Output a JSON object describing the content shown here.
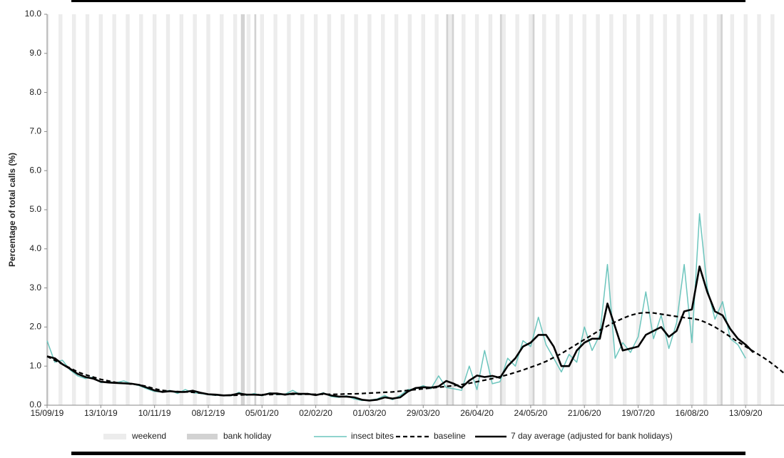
{
  "chart_data": {
    "type": "line",
    "ylabel": "Percentage of total calls (%)",
    "xlim": [
      0,
      384
    ],
    "xticks": [
      {
        "value": 0,
        "label": "15/09/19"
      },
      {
        "value": 28,
        "label": "13/10/19"
      },
      {
        "value": 56,
        "label": "10/11/19"
      },
      {
        "value": 84,
        "label": "08/12/19"
      },
      {
        "value": 112,
        "label": "05/01/20"
      },
      {
        "value": 140,
        "label": "02/02/20"
      },
      {
        "value": 168,
        "label": "01/03/20"
      },
      {
        "value": 196,
        "label": "29/03/20"
      },
      {
        "value": 224,
        "label": "26/04/20"
      },
      {
        "value": 252,
        "label": "24/05/20"
      },
      {
        "value": 280,
        "label": "21/06/20"
      },
      {
        "value": 308,
        "label": "19/07/20"
      },
      {
        "value": 336,
        "label": "16/08/20"
      },
      {
        "value": 364,
        "label": "13/09/20"
      }
    ],
    "ylim": [
      0,
      10
    ],
    "yticks": [
      {
        "value": 0,
        "label": "0.0"
      },
      {
        "value": 1,
        "label": "1.0"
      },
      {
        "value": 2,
        "label": "2.0"
      },
      {
        "value": 3,
        "label": "3.0"
      },
      {
        "value": 4,
        "label": "4.0"
      },
      {
        "value": 5,
        "label": "5.0"
      },
      {
        "value": 6,
        "label": "6.0"
      },
      {
        "value": 7,
        "label": "7.0"
      },
      {
        "value": 8,
        "label": "8.0"
      },
      {
        "value": 9,
        "label": "9.0"
      },
      {
        "value": 10,
        "label": "10.0"
      }
    ],
    "bands": [
      {
        "name": "weekend",
        "color": "#ececec",
        "x": [
          0,
          6,
          7,
          13,
          14,
          20,
          21,
          27,
          28,
          34,
          35,
          41,
          42,
          48,
          49,
          55,
          56,
          62,
          63,
          69,
          70,
          76,
          77,
          83,
          84,
          90,
          91,
          97,
          98,
          104,
          105,
          111,
          112,
          118,
          119,
          125,
          126,
          132,
          133,
          139,
          140,
          146,
          147,
          153,
          154,
          160,
          161,
          167,
          168,
          174,
          175,
          181,
          182,
          188,
          189,
          195,
          196,
          202,
          203,
          209,
          210,
          216,
          217,
          223,
          224,
          230,
          231,
          237,
          238,
          244,
          245,
          251,
          252,
          258,
          259,
          265,
          266,
          272,
          273,
          279,
          280,
          286,
          287,
          293,
          294,
          300,
          301,
          307,
          308,
          314,
          315,
          321,
          322,
          328,
          329,
          335,
          336,
          342,
          343,
          349,
          350,
          356,
          357,
          363,
          364,
          370,
          371,
          377,
          378,
          384
        ]
      },
      {
        "name": "bank holiday",
        "color": "#d2d2d2",
        "x": [
          101,
          102,
          108,
          208,
          211,
          236,
          253,
          351
        ]
      }
    ],
    "x": [
      0,
      4,
      8,
      12,
      16,
      20,
      24,
      28,
      32,
      36,
      40,
      44,
      48,
      52,
      56,
      60,
      64,
      68,
      72,
      76,
      80,
      84,
      88,
      92,
      96,
      100,
      104,
      108,
      112,
      116,
      120,
      124,
      128,
      132,
      136,
      140,
      144,
      148,
      152,
      156,
      160,
      164,
      168,
      172,
      176,
      180,
      184,
      188,
      192,
      196,
      200,
      204,
      208,
      212,
      216,
      220,
      224,
      228,
      232,
      236,
      240,
      244,
      248,
      252,
      256,
      260,
      264,
      268,
      272,
      276,
      280,
      284,
      288,
      292,
      296,
      300,
      304,
      308,
      312,
      316,
      320,
      324,
      328,
      332,
      336,
      340,
      344,
      348,
      352,
      356,
      360,
      364,
      368,
      372,
      376,
      380,
      384
    ],
    "series": [
      {
        "name": "insect bites",
        "color": "#6cc5bd",
        "style": "solid",
        "width": 1.5,
        "values": [
          1.65,
          1.1,
          1.15,
          0.9,
          0.75,
          0.68,
          0.72,
          0.58,
          0.6,
          0.58,
          0.62,
          0.55,
          0.5,
          0.42,
          0.35,
          0.34,
          0.38,
          0.3,
          0.4,
          0.32,
          0.3,
          0.27,
          0.25,
          0.26,
          0.24,
          0.33,
          0.25,
          0.3,
          0.24,
          0.32,
          0.27,
          0.28,
          0.38,
          0.27,
          0.3,
          0.25,
          0.32,
          0.22,
          0.2,
          0.24,
          0.16,
          0.12,
          0.13,
          0.16,
          0.25,
          0.14,
          0.25,
          0.4,
          0.42,
          0.5,
          0.42,
          0.75,
          0.45,
          0.42,
          0.38,
          1.0,
          0.4,
          1.4,
          0.55,
          0.6,
          1.2,
          1.0,
          1.65,
          1.5,
          2.25,
          1.55,
          1.2,
          0.85,
          1.3,
          1.1,
          2.0,
          1.4,
          1.8,
          3.6,
          1.2,
          1.6,
          1.35,
          1.75,
          2.9,
          1.7,
          2.3,
          1.45,
          2.1,
          3.6,
          1.6,
          4.9,
          3.0,
          2.2,
          2.65,
          1.7,
          1.55,
          1.2,
          null,
          null,
          null,
          null,
          null
        ]
      },
      {
        "name": "baseline",
        "color": "#000000",
        "style": "dashed",
        "width": 2.2,
        "values": [
          1.25,
          1.15,
          1.05,
          0.95,
          0.85,
          0.78,
          0.72,
          0.66,
          0.62,
          0.58,
          0.56,
          0.54,
          0.52,
          0.48,
          0.42,
          0.38,
          0.36,
          0.35,
          0.34,
          0.33,
          0.31,
          0.28,
          0.26,
          0.25,
          0.25,
          0.26,
          0.27,
          0.27,
          0.27,
          0.27,
          0.28,
          0.28,
          0.28,
          0.28,
          0.28,
          0.28,
          0.28,
          0.28,
          0.28,
          0.29,
          0.29,
          0.3,
          0.31,
          0.32,
          0.33,
          0.34,
          0.36,
          0.38,
          0.4,
          0.42,
          0.44,
          0.46,
          0.48,
          0.5,
          0.53,
          0.56,
          0.6,
          0.64,
          0.68,
          0.73,
          0.78,
          0.84,
          0.9,
          0.97,
          1.04,
          1.12,
          1.22,
          1.32,
          1.44,
          1.56,
          1.68,
          1.8,
          1.92,
          2.03,
          2.13,
          2.22,
          2.3,
          2.35,
          2.37,
          2.36,
          2.33,
          2.3,
          2.27,
          2.24,
          2.22,
          2.18,
          2.1,
          2.0,
          1.88,
          1.75,
          1.62,
          1.5,
          1.38,
          1.26,
          1.13,
          0.98,
          0.82
        ]
      },
      {
        "name": "7 day average (adjusted for bank holidays)",
        "color": "#000000",
        "style": "solid",
        "width": 2.6,
        "values": [
          1.25,
          1.2,
          1.05,
          0.93,
          0.8,
          0.72,
          0.68,
          0.6,
          0.58,
          0.57,
          0.56,
          0.55,
          0.52,
          0.45,
          0.38,
          0.34,
          0.36,
          0.34,
          0.34,
          0.37,
          0.32,
          0.28,
          0.27,
          0.25,
          0.26,
          0.3,
          0.27,
          0.27,
          0.26,
          0.3,
          0.3,
          0.27,
          0.3,
          0.29,
          0.29,
          0.26,
          0.3,
          0.25,
          0.22,
          0.22,
          0.2,
          0.14,
          0.12,
          0.14,
          0.2,
          0.17,
          0.2,
          0.35,
          0.44,
          0.46,
          0.45,
          0.48,
          0.62,
          0.55,
          0.45,
          0.63,
          0.76,
          0.72,
          0.75,
          0.7,
          1.0,
          1.2,
          1.5,
          1.6,
          1.8,
          1.8,
          1.5,
          1.0,
          1.0,
          1.4,
          1.6,
          1.7,
          1.7,
          2.6,
          2.0,
          1.4,
          1.45,
          1.5,
          1.8,
          1.9,
          2.0,
          1.75,
          1.9,
          2.4,
          2.45,
          3.55,
          2.9,
          2.4,
          2.3,
          1.95,
          1.7,
          1.55,
          1.35,
          null,
          null,
          null,
          null
        ]
      }
    ]
  }
}
